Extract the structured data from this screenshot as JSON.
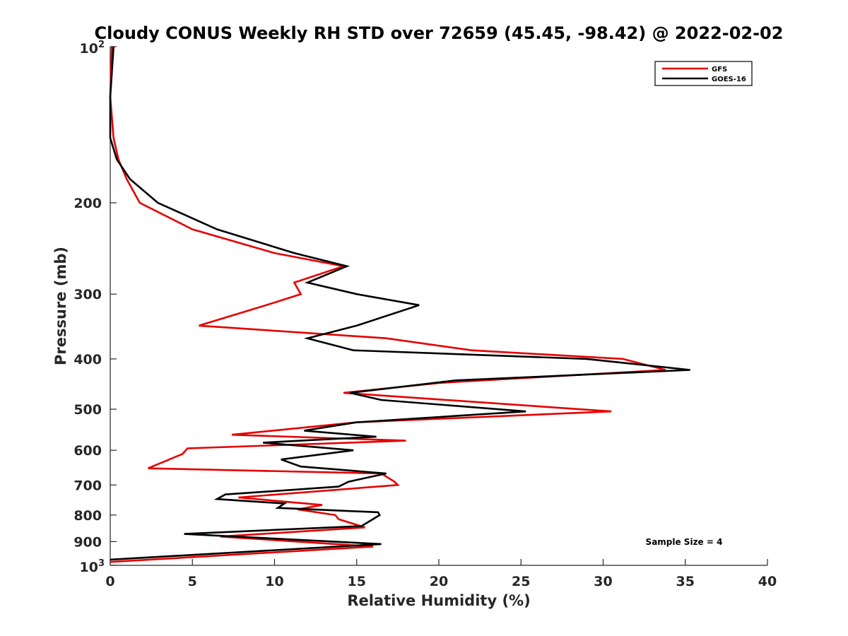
{
  "chart_data": {
    "type": "line",
    "title": "Cloudy CONUS Weekly RH STD over 72659 (45.45, -98.42) @ 2022-02-02",
    "xlabel": "Relative Humidity (%)",
    "ylabel": "Pressure (mb)",
    "xlim": [
      0,
      40
    ],
    "ylim": [
      100,
      1000
    ],
    "y_scale": "log",
    "y_reversed": true,
    "x_ticks": [
      0,
      5,
      10,
      15,
      20,
      25,
      30,
      35,
      40
    ],
    "x_tick_labels": [
      "0",
      "5",
      "10",
      "15",
      "20",
      "25",
      "30",
      "35",
      "40"
    ],
    "y_ticks": [
      {
        "value": 100,
        "base": "10",
        "exp": "2"
      },
      {
        "value": 200,
        "label": "200"
      },
      {
        "value": 300,
        "label": "300"
      },
      {
        "value": 400,
        "label": "400"
      },
      {
        "value": 500,
        "label": "500"
      },
      {
        "value": 600,
        "label": "600"
      },
      {
        "value": 700,
        "label": "700"
      },
      {
        "value": 800,
        "label": "800"
      },
      {
        "value": 900,
        "label": "900"
      },
      {
        "value": 1000,
        "base": "10",
        "exp": "3"
      }
    ],
    "grid": false,
    "legend_position": "top-right",
    "annotation": "Sample Size = 4",
    "series": [
      {
        "name": "GFS",
        "color": "#e60000",
        "points": [
          [
            0.1,
            100
          ],
          [
            0.0,
            125
          ],
          [
            0.2,
            150
          ],
          [
            0.5,
            165
          ],
          [
            1.0,
            180
          ],
          [
            1.8,
            200
          ],
          [
            5.0,
            225
          ],
          [
            10.0,
            250
          ],
          [
            14.2,
            265
          ],
          [
            11.2,
            285
          ],
          [
            11.6,
            300
          ],
          [
            9.5,
            315
          ],
          [
            5.4,
            345
          ],
          [
            16.8,
            365
          ],
          [
            22.0,
            385
          ],
          [
            31.2,
            400
          ],
          [
            33.8,
            420
          ],
          [
            20.0,
            445
          ],
          [
            14.2,
            465
          ],
          [
            30.5,
            505
          ],
          [
            15.0,
            530
          ],
          [
            7.4,
            560
          ],
          [
            18.0,
            575
          ],
          [
            4.7,
            595
          ],
          [
            4.4,
            610
          ],
          [
            2.3,
            650
          ],
          [
            16.5,
            665
          ],
          [
            17.3,
            690
          ],
          [
            17.5,
            700
          ],
          [
            7.8,
            740
          ],
          [
            12.9,
            765
          ],
          [
            11.4,
            780
          ],
          [
            13.7,
            800
          ],
          [
            13.9,
            815
          ],
          [
            15.5,
            845
          ],
          [
            6.7,
            880
          ],
          [
            16.0,
            920
          ],
          [
            0.0,
            985
          ]
        ]
      },
      {
        "name": "GOES-16",
        "color": "#000000",
        "points": [
          [
            0.2,
            100
          ],
          [
            0.0,
            125
          ],
          [
            0.0,
            150
          ],
          [
            0.4,
            165
          ],
          [
            1.2,
            180
          ],
          [
            2.9,
            200
          ],
          [
            6.5,
            225
          ],
          [
            11.2,
            250
          ],
          [
            14.4,
            265
          ],
          [
            12.0,
            285
          ],
          [
            15.0,
            300
          ],
          [
            18.8,
            315
          ],
          [
            15.0,
            345
          ],
          [
            12.0,
            365
          ],
          [
            14.8,
            385
          ],
          [
            29.0,
            400
          ],
          [
            35.3,
            420
          ],
          [
            21.0,
            440
          ],
          [
            14.6,
            465
          ],
          [
            16.5,
            480
          ],
          [
            25.3,
            505
          ],
          [
            15.0,
            530
          ],
          [
            11.8,
            550
          ],
          [
            16.2,
            565
          ],
          [
            9.3,
            580
          ],
          [
            14.8,
            600
          ],
          [
            10.4,
            625
          ],
          [
            11.6,
            645
          ],
          [
            16.8,
            665
          ],
          [
            14.5,
            690
          ],
          [
            13.9,
            705
          ],
          [
            7.0,
            730
          ],
          [
            6.5,
            745
          ],
          [
            10.6,
            760
          ],
          [
            10.2,
            775
          ],
          [
            16.3,
            790
          ],
          [
            16.4,
            800
          ],
          [
            15.3,
            840
          ],
          [
            4.5,
            870
          ],
          [
            16.5,
            910
          ],
          [
            0.0,
            975
          ]
        ]
      }
    ]
  }
}
